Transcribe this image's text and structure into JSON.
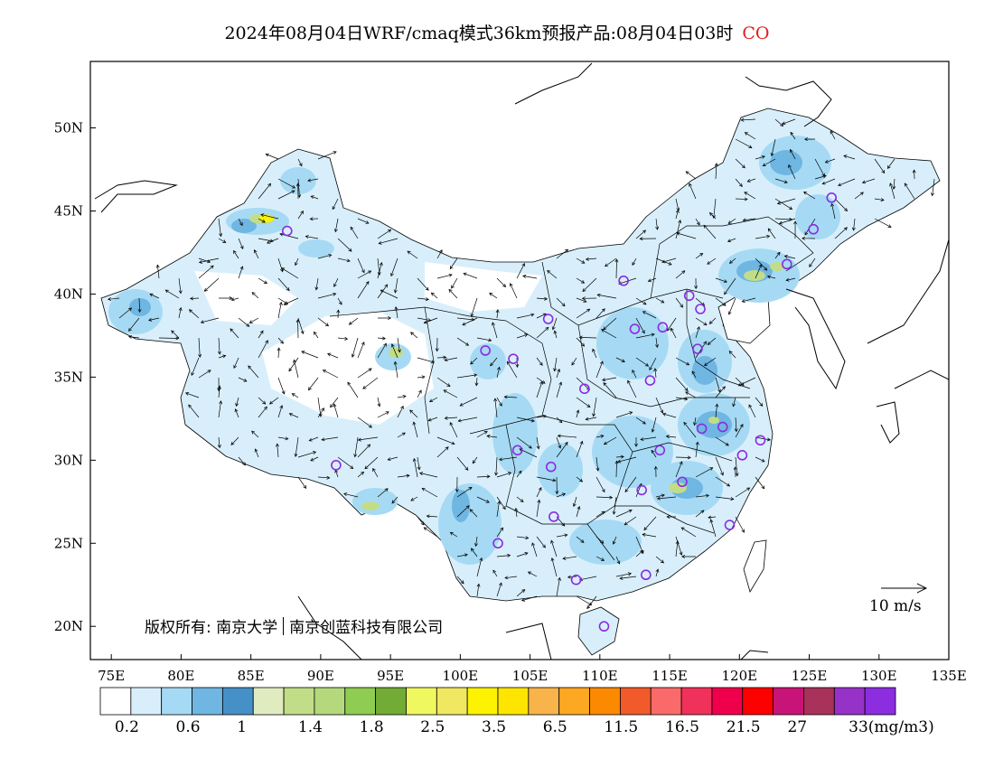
{
  "title": {
    "text": "2024年08月04日WRF/cmaq模式36km预报产品:08月04日03时",
    "species": "CO",
    "species_color": "#e02020"
  },
  "axes": {
    "lat_labels": [
      "50N",
      "45N",
      "40N",
      "35N",
      "30N",
      "25N",
      "20N"
    ],
    "lat_values": [
      50,
      45,
      40,
      35,
      30,
      25,
      20
    ],
    "lon_labels": [
      "75E",
      "80E",
      "85E",
      "90E",
      "95E",
      "100E",
      "105E",
      "110E",
      "115E",
      "120E",
      "125E",
      "130E",
      "135E"
    ],
    "lon_values": [
      75,
      80,
      85,
      90,
      95,
      100,
      105,
      110,
      115,
      120,
      125,
      130,
      135
    ],
    "lon_range": [
      73.5,
      135
    ],
    "lat_range": [
      18,
      54
    ]
  },
  "colorbar": {
    "colors": [
      "#ffffff",
      "#d8effb",
      "#a6daf4",
      "#6fb6e2",
      "#4690c8",
      "#e0ecc0",
      "#c2dd88",
      "#b3d97c",
      "#8fcc52",
      "#72ab36",
      "#f0f860",
      "#f0e860",
      "#fdf300",
      "#fde500",
      "#f8b44a",
      "#fca822",
      "#fb8a00",
      "#f15a2a",
      "#fb6a6a",
      "#f0325a",
      "#f0004c",
      "#ff0000",
      "#c81478",
      "#a8325a",
      "#9632c8",
      "#8c2de0"
    ],
    "labels": [
      "0.2",
      "0.6",
      "1",
      "1.4",
      "1.8",
      "2.5",
      "3.5",
      "6.5",
      "11.5",
      "16.5",
      "21.5",
      "27",
      "33(mg/m3)"
    ]
  },
  "copyright": {
    "prefix": "版权所有:",
    "org1": "南京大学",
    "org2": "南京创蓝科技有限公司"
  },
  "wind_reference": {
    "label": "10 m/s"
  },
  "stations": [
    {
      "lon": 87.6,
      "lat": 43.8
    },
    {
      "lon": 91.1,
      "lat": 29.7
    },
    {
      "lon": 101.8,
      "lat": 36.6
    },
    {
      "lon": 103.8,
      "lat": 36.1
    },
    {
      "lon": 106.3,
      "lat": 38.5
    },
    {
      "lon": 111.7,
      "lat": 40.8
    },
    {
      "lon": 112.5,
      "lat": 37.9
    },
    {
      "lon": 114.5,
      "lat": 38.0
    },
    {
      "lon": 116.4,
      "lat": 39.9
    },
    {
      "lon": 117.2,
      "lat": 39.1
    },
    {
      "lon": 117.0,
      "lat": 36.7
    },
    {
      "lon": 113.6,
      "lat": 34.8
    },
    {
      "lon": 108.9,
      "lat": 34.3
    },
    {
      "lon": 104.1,
      "lat": 30.6
    },
    {
      "lon": 106.5,
      "lat": 29.6
    },
    {
      "lon": 106.7,
      "lat": 26.6
    },
    {
      "lon": 102.7,
      "lat": 25.0
    },
    {
      "lon": 108.3,
      "lat": 22.8
    },
    {
      "lon": 113.3,
      "lat": 23.1
    },
    {
      "lon": 110.3,
      "lat": 20.0
    },
    {
      "lon": 113.0,
      "lat": 28.2
    },
    {
      "lon": 114.3,
      "lat": 30.6
    },
    {
      "lon": 115.9,
      "lat": 28.7
    },
    {
      "lon": 117.3,
      "lat": 31.9
    },
    {
      "lon": 118.8,
      "lat": 32.0
    },
    {
      "lon": 120.2,
      "lat": 30.3
    },
    {
      "lon": 121.5,
      "lat": 31.2
    },
    {
      "lon": 119.3,
      "lat": 26.1
    },
    {
      "lon": 123.4,
      "lat": 41.8
    },
    {
      "lon": 125.3,
      "lat": 43.9
    },
    {
      "lon": 126.6,
      "lat": 45.8
    }
  ]
}
